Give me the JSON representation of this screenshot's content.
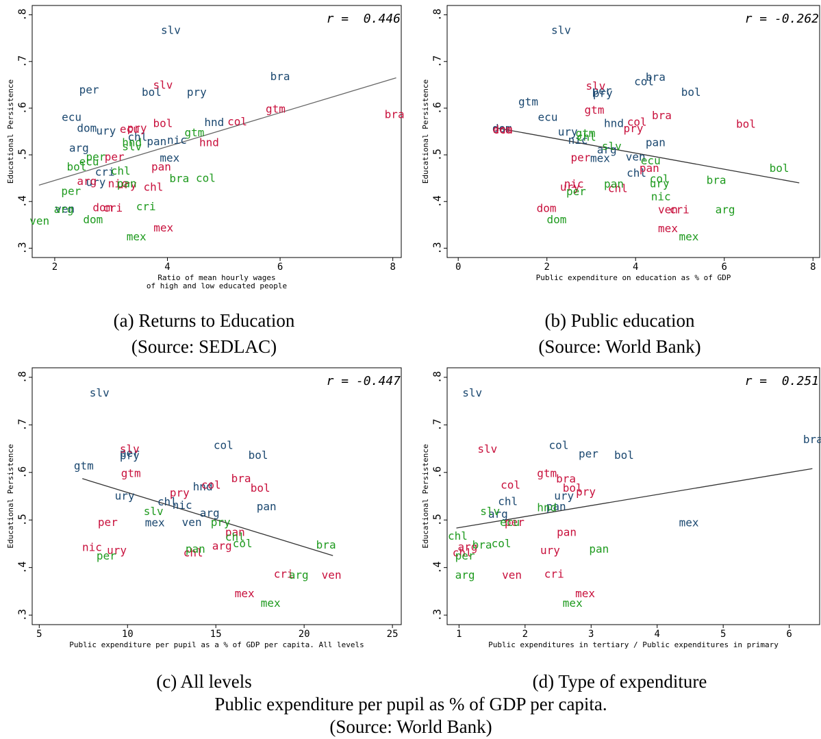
{
  "chart_data": [
    {
      "type": "scatter",
      "annotation": "r =  0.446",
      "ylabel": "Educational Persistence",
      "xlabel": [
        "Ratio of mean hourly wages",
        "of high and low educated people"
      ],
      "caption": [
        "(a) Returns to Education",
        "(Source: SEDLAC)"
      ],
      "xlim": [
        1.6,
        8.15
      ],
      "ylim": [
        0.28,
        0.82
      ],
      "xticks": [
        2,
        4,
        6,
        8
      ],
      "yticks": [
        {
          "value": 0.3,
          "label": ".3"
        },
        {
          "value": 0.4,
          "label": ".4"
        },
        {
          "value": 0.5,
          "label": ".5"
        },
        {
          "value": 0.6,
          "label": ".6"
        },
        {
          "value": 0.7,
          "label": ".7"
        },
        {
          "value": 0.8,
          "label": ".8"
        }
      ],
      "fit_line": {
        "color": "#666666",
        "x": [
          1.72,
          8.06
        ],
        "y": [
          0.435,
          0.665
        ]
      },
      "series": [
        {
          "color": "#1a476f",
          "labels": [
            "slv",
            "bra",
            "per",
            "bol",
            "pry",
            "ecu",
            "hnd",
            "dom",
            "ury",
            "chl",
            "pan",
            "nic",
            "arg",
            "mex",
            "cri",
            "ven",
            "ury"
          ],
          "x": [
            4.06,
            6.0,
            2.61,
            3.72,
            4.52,
            2.3,
            4.83,
            2.57,
            2.91,
            3.47,
            3.81,
            4.17,
            2.43,
            4.04,
            2.89,
            2.18,
            2.73
          ],
          "y": [
            0.766,
            0.667,
            0.638,
            0.633,
            0.633,
            0.579,
            0.568,
            0.556,
            0.55,
            0.537,
            0.527,
            0.53,
            0.513,
            0.492,
            0.462,
            0.383,
            0.44
          ]
        },
        {
          "color": "#c8103c",
          "labels": [
            "slv",
            "gtm",
            "col",
            "bol",
            "ecu",
            "pry",
            "hnd",
            "per",
            "pan",
            "arg",
            "nic",
            "ury",
            "chl",
            "dom",
            "cri",
            "mex",
            "bra"
          ],
          "x": [
            3.92,
            5.92,
            5.24,
            3.92,
            3.33,
            3.46,
            4.74,
            3.06,
            3.89,
            2.57,
            3.12,
            3.28,
            3.75,
            2.85,
            3.03,
            3.93,
            8.03
          ],
          "y": [
            0.648,
            0.597,
            0.57,
            0.566,
            0.554,
            0.556,
            0.525,
            0.494,
            0.473,
            0.442,
            0.437,
            0.435,
            0.43,
            0.386,
            0.385,
            0.342,
            0.585
          ]
        },
        {
          "color": "#1e9a1e",
          "labels": [
            "gtm",
            "hnd",
            "slv",
            "per",
            "ecu",
            "bol",
            "chl",
            "pan",
            "per",
            "bra",
            "col",
            "arg",
            "cri",
            "ven",
            "dom",
            "mex"
          ],
          "x": [
            4.48,
            3.37,
            3.37,
            2.73,
            2.61,
            2.39,
            3.17,
            3.28,
            2.29,
            4.21,
            4.68,
            2.16,
            3.62,
            1.73,
            2.68,
            3.45
          ],
          "y": [
            0.546,
            0.525,
            0.516,
            0.494,
            0.484,
            0.473,
            0.464,
            0.437,
            0.421,
            0.448,
            0.449,
            0.382,
            0.388,
            0.357,
            0.36,
            0.323
          ]
        }
      ]
    },
    {
      "type": "scatter",
      "annotation": "r = -0.262",
      "ylabel": "Educational Persistence",
      "xlabel": [
        "Public expenditure on education as % of GDP"
      ],
      "caption": [
        "(b) Public education",
        "(Source: World Bank)"
      ],
      "xlim": [
        -0.25,
        8.15
      ],
      "ylim": [
        0.28,
        0.82
      ],
      "xticks": [
        0,
        2,
        4,
        6,
        8
      ],
      "yticks": [
        {
          "value": 0.3,
          "label": ".3"
        },
        {
          "value": 0.4,
          "label": ".4"
        },
        {
          "value": 0.5,
          "label": ".5"
        },
        {
          "value": 0.6,
          "label": ".6"
        },
        {
          "value": 0.7,
          "label": ".7"
        },
        {
          "value": 0.8,
          "label": ".8"
        }
      ],
      "fit_line": {
        "color": "#333333",
        "x": [
          0.79,
          7.69
        ],
        "y": [
          0.559,
          0.44
        ]
      },
      "series": [
        {
          "color": "#1a476f",
          "labels": [
            "slv",
            "bra",
            "col",
            "per",
            "pry",
            "bol",
            "gtm",
            "ecu",
            "hnd",
            "ury",
            "nic",
            "dom",
            "pan",
            "arg",
            "mex",
            "ven",
            "chl"
          ],
          "x": [
            2.32,
            4.45,
            4.19,
            3.24,
            3.26,
            5.25,
            1.58,
            2.02,
            3.51,
            2.47,
            2.7,
            0.99,
            4.45,
            3.35,
            3.2,
            4.0,
            4.02
          ],
          "y": [
            0.766,
            0.665,
            0.656,
            0.636,
            0.631,
            0.633,
            0.612,
            0.579,
            0.566,
            0.548,
            0.53,
            0.555,
            0.525,
            0.51,
            0.491,
            0.494,
            0.46
          ]
        },
        {
          "color": "#c8103c",
          "labels": [
            "slv",
            "gtm",
            "bra",
            "col",
            "pry",
            "bol",
            "dom",
            "ecu",
            "per",
            "pan",
            "nic",
            "ury",
            "chl",
            "cri",
            "ven",
            "dom",
            "mex"
          ],
          "x": [
            3.1,
            3.07,
            4.59,
            4.03,
            3.95,
            6.49,
            1.0,
            1.0,
            2.76,
            4.31,
            2.61,
            2.52,
            3.6,
            4.99,
            4.73,
            1.99,
            4.73
          ],
          "y": [
            0.646,
            0.595,
            0.583,
            0.569,
            0.555,
            0.565,
            0.553,
            0.552,
            0.493,
            0.47,
            0.436,
            0.43,
            0.427,
            0.381,
            0.381,
            0.384,
            0.341
          ]
        },
        {
          "color": "#1e9a1e",
          "labels": [
            "gtm",
            "chl",
            "slv",
            "ecu",
            "bol",
            "col",
            "bra",
            "ury",
            "pan",
            "per",
            "nic",
            "arg",
            "dom",
            "mex"
          ],
          "x": [
            2.87,
            2.89,
            3.46,
            4.34,
            7.24,
            4.54,
            5.82,
            4.54,
            3.51,
            2.66,
            4.57,
            6.02,
            2.22,
            5.2
          ],
          "y": [
            0.545,
            0.537,
            0.517,
            0.486,
            0.47,
            0.447,
            0.444,
            0.437,
            0.436,
            0.42,
            0.409,
            0.381,
            0.36,
            0.323
          ]
        }
      ]
    },
    {
      "type": "scatter",
      "annotation": "r = -0.447",
      "ylabel": "Educational Persistence",
      "xlabel": [
        "Public expenditure per pupil as a % of GDP per capita. All levels"
      ],
      "caption": [
        "(c) All levels"
      ],
      "xlim": [
        4.6,
        25.5
      ],
      "ylim": [
        0.28,
        0.82
      ],
      "xticks": [
        5,
        10,
        15,
        20,
        25
      ],
      "yticks": [
        {
          "value": 0.3,
          "label": ".3"
        },
        {
          "value": 0.4,
          "label": ".4"
        },
        {
          "value": 0.5,
          "label": ".5"
        },
        {
          "value": 0.6,
          "label": ".6"
        },
        {
          "value": 0.7,
          "label": ".7"
        },
        {
          "value": 0.8,
          "label": ".8"
        }
      ],
      "fit_line": {
        "color": "#333333",
        "x": [
          7.44,
          21.63
        ],
        "y": [
          0.587,
          0.425
        ]
      },
      "series": [
        {
          "color": "#1a476f",
          "labels": [
            "slv",
            "col",
            "per",
            "pry",
            "bol",
            "gtm",
            "hnd",
            "ury",
            "chl",
            "nic",
            "arg",
            "pan",
            "mex",
            "ven"
          ],
          "x": [
            8.41,
            15.43,
            10.12,
            10.12,
            17.4,
            7.52,
            14.26,
            9.84,
            12.25,
            13.1,
            14.65,
            17.87,
            11.55,
            13.64
          ],
          "y": [
            0.766,
            0.656,
            0.639,
            0.634,
            0.635,
            0.613,
            0.569,
            0.549,
            0.537,
            0.53,
            0.513,
            0.527,
            0.493,
            0.494
          ]
        },
        {
          "color": "#c8103c",
          "labels": [
            "slv",
            "gtm",
            "pry",
            "col",
            "bra",
            "bol",
            "per",
            "pan",
            "arg",
            "nic",
            "ury",
            "chl",
            "cri",
            "ven",
            "mex"
          ],
          "x": [
            10.12,
            10.19,
            12.95,
            14.73,
            16.43,
            17.52,
            8.88,
            16.09,
            15.35,
            7.99,
            9.39,
            13.72,
            18.84,
            21.55,
            16.63
          ],
          "y": [
            0.648,
            0.597,
            0.556,
            0.572,
            0.586,
            0.566,
            0.494,
            0.473,
            0.444,
            0.441,
            0.435,
            0.43,
            0.385,
            0.383,
            0.344
          ]
        },
        {
          "color": "#1e9a1e",
          "labels": [
            "slv",
            "pry",
            "chl",
            "col",
            "bra",
            "pan",
            "per",
            "arg",
            "mex"
          ],
          "x": [
            11.47,
            15.27,
            16.09,
            16.51,
            21.24,
            13.84,
            8.8,
            19.69,
            18.1
          ],
          "y": [
            0.517,
            0.494,
            0.463,
            0.449,
            0.446,
            0.438,
            0.423,
            0.383,
            0.324
          ]
        }
      ]
    },
    {
      "type": "scatter",
      "annotation": "r =  0.251",
      "ylabel": "Educational Persistence",
      "xlabel": [
        "Public expenditures in tertiary / Public expenditures in primary"
      ],
      "caption": [
        "(d) Type of expenditure"
      ],
      "xlim": [
        0.82,
        6.46
      ],
      "ylim": [
        0.28,
        0.82
      ],
      "xticks": [
        1,
        2,
        3,
        4,
        5,
        6
      ],
      "yticks": [
        {
          "value": 0.3,
          "label": ".3"
        },
        {
          "value": 0.4,
          "label": ".4"
        },
        {
          "value": 0.5,
          "label": ".5"
        },
        {
          "value": 0.6,
          "label": ".6"
        },
        {
          "value": 0.7,
          "label": ".7"
        },
        {
          "value": 0.8,
          "label": ".8"
        }
      ],
      "fit_line": {
        "color": "#333333",
        "x": [
          0.96,
          6.35
        ],
        "y": [
          0.483,
          0.608
        ]
      },
      "series": [
        {
          "color": "#1a476f",
          "labels": [
            "slv",
            "bra",
            "col",
            "per",
            "bol",
            "ury",
            "pan",
            "chl",
            "arg",
            "mex"
          ],
          "x": [
            1.2,
            6.36,
            2.51,
            2.96,
            3.5,
            2.59,
            2.47,
            1.74,
            1.59,
            4.48
          ],
          "y": [
            0.766,
            0.668,
            0.656,
            0.638,
            0.635,
            0.549,
            0.527,
            0.538,
            0.511,
            0.493
          ]
        },
        {
          "color": "#c8103c",
          "labels": [
            "slv",
            "gtm",
            "bra",
            "bol",
            "pry",
            "col",
            "per",
            "pan",
            "ury",
            "arg",
            "chl",
            "cri",
            "ven",
            "mex"
          ],
          "x": [
            1.43,
            2.33,
            2.62,
            2.72,
            2.92,
            1.78,
            1.84,
            2.63,
            2.38,
            1.13,
            1.05,
            2.44,
            1.8,
            2.91
          ],
          "y": [
            0.648,
            0.597,
            0.585,
            0.566,
            0.558,
            0.572,
            0.494,
            0.473,
            0.435,
            0.442,
            0.43,
            0.385,
            0.383,
            0.344
          ]
        },
        {
          "color": "#1e9a1e",
          "labels": [
            "slv",
            "hnd",
            "ecu",
            "chl",
            "bra",
            "col",
            "per",
            "pan",
            "arg",
            "mex"
          ],
          "x": [
            1.47,
            2.33,
            1.77,
            0.98,
            1.35,
            1.64,
            1.09,
            3.12,
            1.09,
            2.72
          ],
          "y": [
            0.517,
            0.525,
            0.494,
            0.465,
            0.446,
            0.449,
            0.423,
            0.438,
            0.383,
            0.324
          ]
        }
      ]
    }
  ],
  "caption": [
    "Public expenditure per pupil as % of GDP per capita.",
    "(Source: World Bank)"
  ]
}
